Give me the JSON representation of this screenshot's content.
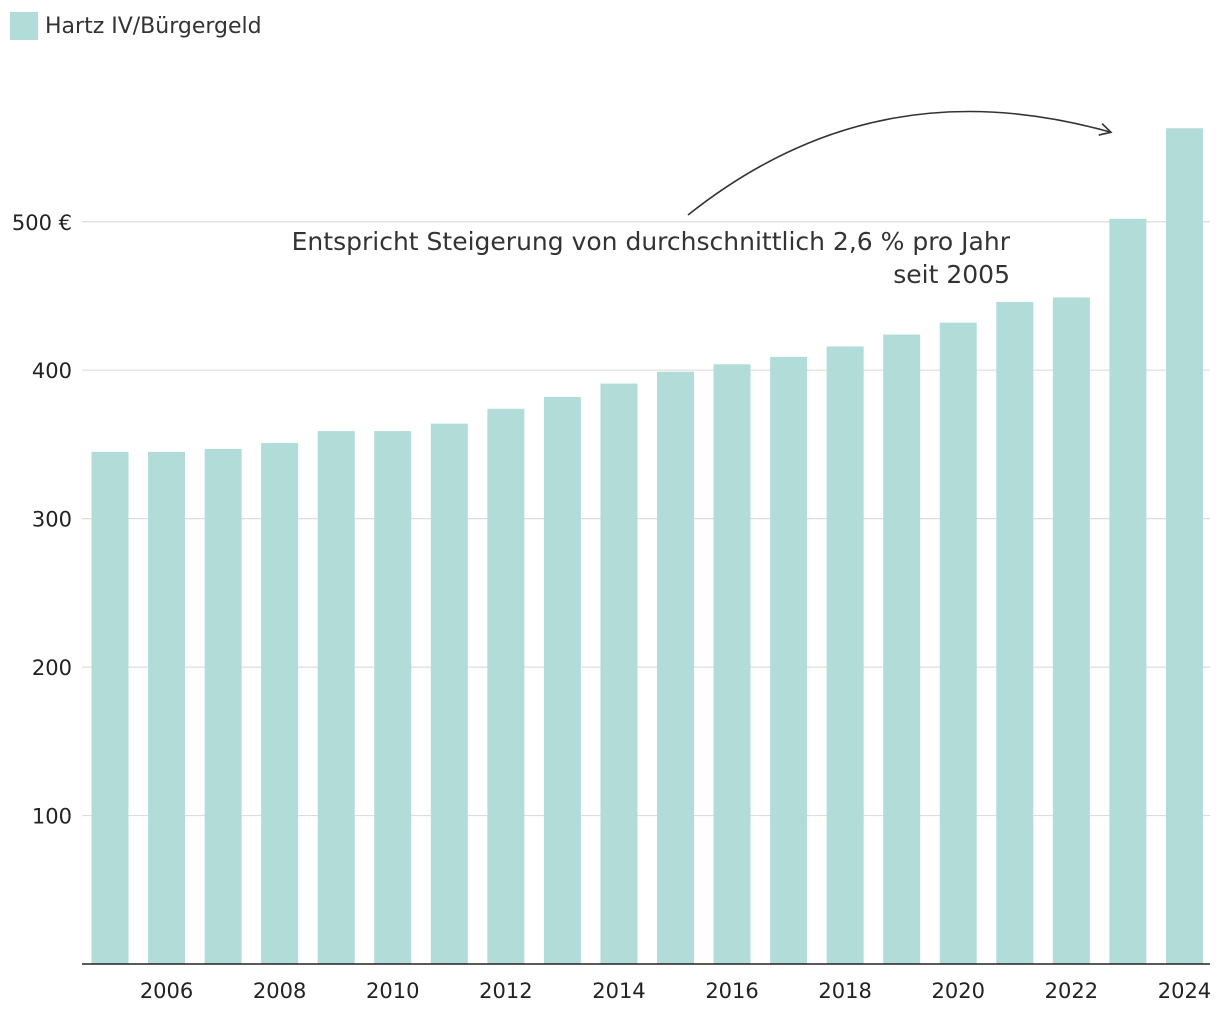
{
  "chart_data": {
    "type": "bar",
    "title": "",
    "xlabel": "",
    "ylabel": "",
    "legend": {
      "label": "Hartz IV/Bürgergeld",
      "placement": "top-left"
    },
    "colors": {
      "bar": "#b2dcd8",
      "grid": "#dddddd",
      "axis": "#222222",
      "arrow": "#333333"
    },
    "categories": [
      "2005",
      "2006",
      "2007",
      "2008",
      "2009",
      "2010",
      "2011",
      "2012",
      "2013",
      "2014",
      "2015",
      "2016",
      "2017",
      "2018",
      "2019",
      "2020",
      "2021",
      "2022",
      "2023",
      "2024"
    ],
    "values": [
      345,
      345,
      347,
      351,
      359,
      359,
      364,
      374,
      382,
      391,
      399,
      404,
      409,
      416,
      424,
      432,
      446,
      449,
      502,
      563
    ],
    "ylim": [
      0,
      600
    ],
    "yticks": [
      {
        "value": 100,
        "label": "100"
      },
      {
        "value": 200,
        "label": "200"
      },
      {
        "value": 300,
        "label": "300"
      },
      {
        "value": 400,
        "label": "400"
      },
      {
        "value": 500,
        "label": "500 €"
      }
    ],
    "xticks": [
      "2006",
      "2008",
      "2010",
      "2012",
      "2014",
      "2016",
      "2018",
      "2020",
      "2022",
      "2024"
    ],
    "grid": true,
    "annotation": {
      "line1": "Entspricht Steigerung von durchschnittlich 2,6 % pro Jahr",
      "line2": "seit 2005"
    }
  }
}
